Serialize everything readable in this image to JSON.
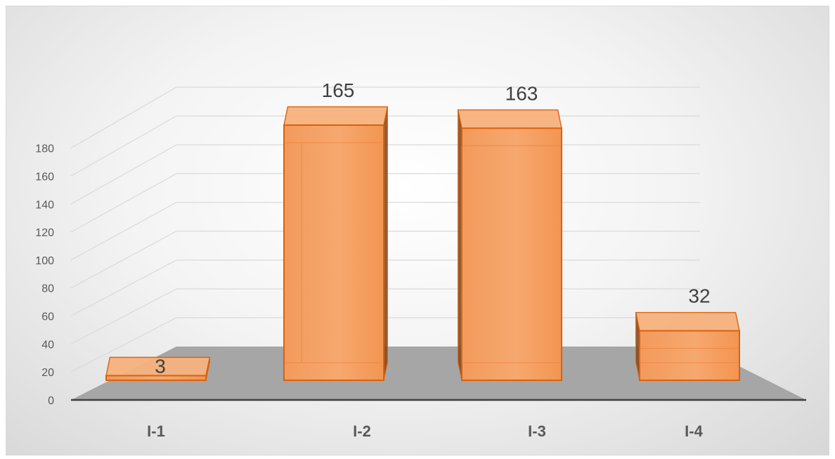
{
  "chart_data": {
    "type": "bar",
    "categories": [
      "I-1",
      "I-2",
      "I-3",
      "I-4"
    ],
    "values": [
      3,
      165,
      163,
      32
    ],
    "data_labels": [
      "3",
      "165",
      "163",
      "32"
    ],
    "title": "",
    "xlabel": "",
    "ylabel": "",
    "ylim": [
      0,
      180
    ],
    "y_ticks": [
      0,
      20,
      40,
      60,
      80,
      100,
      120,
      140,
      160,
      180
    ],
    "grid": true,
    "style": "3d-column",
    "colors": {
      "bar_front": "#F4A166",
      "bar_side": "#8A4A1E",
      "bar_top": "#F7B27E",
      "bar_edge": "#D9620F",
      "floor": "#A6A6A6",
      "gridline": "#D9D9D9",
      "axis": "#404040"
    }
  }
}
